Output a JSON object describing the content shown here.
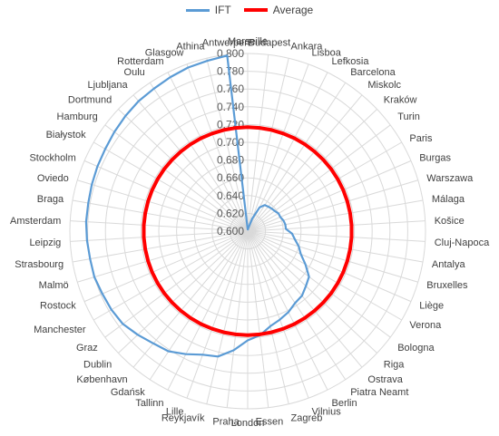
{
  "chart_data": {
    "type": "radar",
    "title": "",
    "legend_position": "top",
    "grid": true,
    "r_range": [
      0.6,
      0.8
    ],
    "r_ticks": [
      "0.600",
      "0.620",
      "0.640",
      "0.660",
      "0.680",
      "0.700",
      "0.720",
      "0.740",
      "0.760",
      "0.780",
      "0.800"
    ],
    "categories": [
      "Marseille",
      "Budapest",
      "Ankara",
      "Lisboa",
      "Lefkosia",
      "Barcelona",
      "Miskolc",
      "Kraków",
      "Turin",
      "Paris",
      "Burgas",
      "Warszawa",
      "Málaga",
      "Košice",
      "Cluj-Napoca",
      "Antalya",
      "Bruxelles",
      "Liège",
      "Verona",
      "Bologna",
      "Riga",
      "Ostrava",
      "Piatra Neamt",
      "Berlin",
      "Vilnius",
      "Zagreb",
      "Essen",
      "London",
      "Praha",
      "Reykjavík",
      "Lille",
      "Tallinn",
      "Gdańsk",
      "København",
      "Dublin",
      "Graz",
      "Manchester",
      "Rostock",
      "Malmö",
      "Strasbourg",
      "Leipzig",
      "Amsterdam",
      "Braga",
      "Oviedo",
      "Stockholm",
      "Białystok",
      "Hamburg",
      "Dortmund",
      "Ljubljana",
      "Oulu",
      "Rotterdam",
      "Glasgow",
      "Athina",
      "Antwerpen"
    ],
    "series": [
      {
        "name": "IFT",
        "color": "#5b9bd5",
        "values": [
          0.602,
          0.602,
          0.604,
          0.615,
          0.63,
          0.635,
          0.636,
          0.637,
          0.638,
          0.64,
          0.64,
          0.642,
          0.643,
          0.643,
          0.65,
          0.654,
          0.66,
          0.665,
          0.675,
          0.686,
          0.69,
          0.695,
          0.697,
          0.702,
          0.706,
          0.71,
          0.718,
          0.723,
          0.735,
          0.745,
          0.748,
          0.755,
          0.762,
          0.765,
          0.77,
          0.775,
          0.777,
          0.778,
          0.78,
          0.78,
          0.781,
          0.782,
          0.782,
          0.783,
          0.784,
          0.785,
          0.787,
          0.789,
          0.791,
          0.792,
          0.794,
          0.796,
          0.797,
          0.799
        ]
      },
      {
        "name": "Average",
        "color": "#ff0000",
        "values": [
          0.717,
          0.717,
          0.717,
          0.717,
          0.717,
          0.717,
          0.717,
          0.717,
          0.717,
          0.717,
          0.717,
          0.717,
          0.717,
          0.717,
          0.717,
          0.717,
          0.717,
          0.717,
          0.717,
          0.717,
          0.717,
          0.717,
          0.717,
          0.717,
          0.717,
          0.717,
          0.717,
          0.717,
          0.717,
          0.717,
          0.717,
          0.717,
          0.717,
          0.717,
          0.717,
          0.717,
          0.717,
          0.717,
          0.717,
          0.717,
          0.717,
          0.717,
          0.717,
          0.717,
          0.717,
          0.717,
          0.717,
          0.717,
          0.717,
          0.717,
          0.717,
          0.717,
          0.717,
          0.717
        ]
      }
    ]
  }
}
